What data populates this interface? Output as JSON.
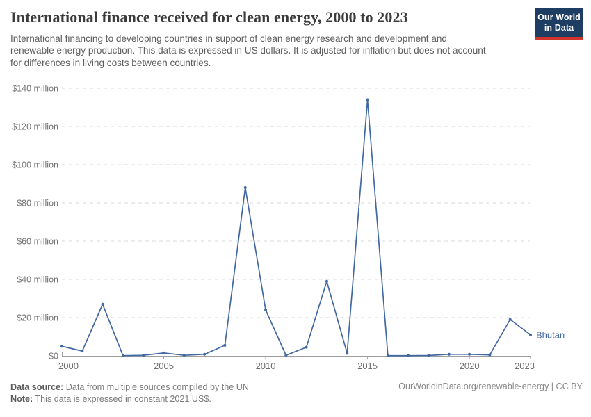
{
  "header": {
    "title": "International finance received for clean energy, 2000 to 2023",
    "subtitle": "International financing to developing countries in support of clean energy research and development and renewable energy production. This data is expressed in US dollars. It is adjusted for inflation but does not account for differences in living costs between countries.",
    "logo": {
      "line1": "Our World",
      "line2": "in Data"
    }
  },
  "chart_data": {
    "type": "line",
    "title": "International finance received for clean energy, 2000 to 2023",
    "unit": "constant 2021 US$",
    "x": [
      2000,
      2001,
      2002,
      2003,
      2004,
      2005,
      2006,
      2007,
      2008,
      2009,
      2010,
      2011,
      2012,
      2013,
      2014,
      2015,
      2016,
      2017,
      2018,
      2019,
      2020,
      2021,
      2022,
      2023
    ],
    "series": [
      {
        "name": "Bhutan",
        "color": "#4268a3",
        "values": [
          5,
          2.5,
          27,
          0.1,
          0.3,
          1.5,
          0.3,
          0.8,
          5.5,
          88,
          24,
          0.3,
          4.5,
          39,
          1.3,
          134,
          0.1,
          0.1,
          0.2,
          0.8,
          0.8,
          0.5,
          19,
          11
        ]
      }
    ],
    "xlim": [
      2000,
      2023
    ],
    "ylim": [
      0,
      140
    ],
    "x_tick_labels": [
      "2000",
      "2005",
      "2010",
      "2015",
      "2020",
      "2023"
    ],
    "x_tick_years": [
      2000,
      2005,
      2010,
      2015,
      2020,
      2023
    ],
    "y_tick_values": [
      0,
      20,
      40,
      60,
      80,
      100,
      120,
      140
    ],
    "y_tick_labels": [
      "$0",
      "$20 million",
      "$40 million",
      "$60 million",
      "$80 million",
      "$100 million",
      "$120 million",
      "$140 million"
    ],
    "grid": "horizontal-dashed",
    "legend_position": "end-of-line-label",
    "colors": {
      "gridline": "#d9d9d9",
      "axis": "#9e9e9e",
      "tick_label": "#737373",
      "year_label": "#6e6e6e"
    }
  },
  "footer": {
    "data_source_label": "Data source:",
    "data_source_text": " Data from multiple sources compiled by the UN",
    "note_label": "Note:",
    "note_text": " This data is expressed in constant 2021 US$.",
    "credit": "OurWorldinData.org/renewable-energy | CC BY"
  }
}
